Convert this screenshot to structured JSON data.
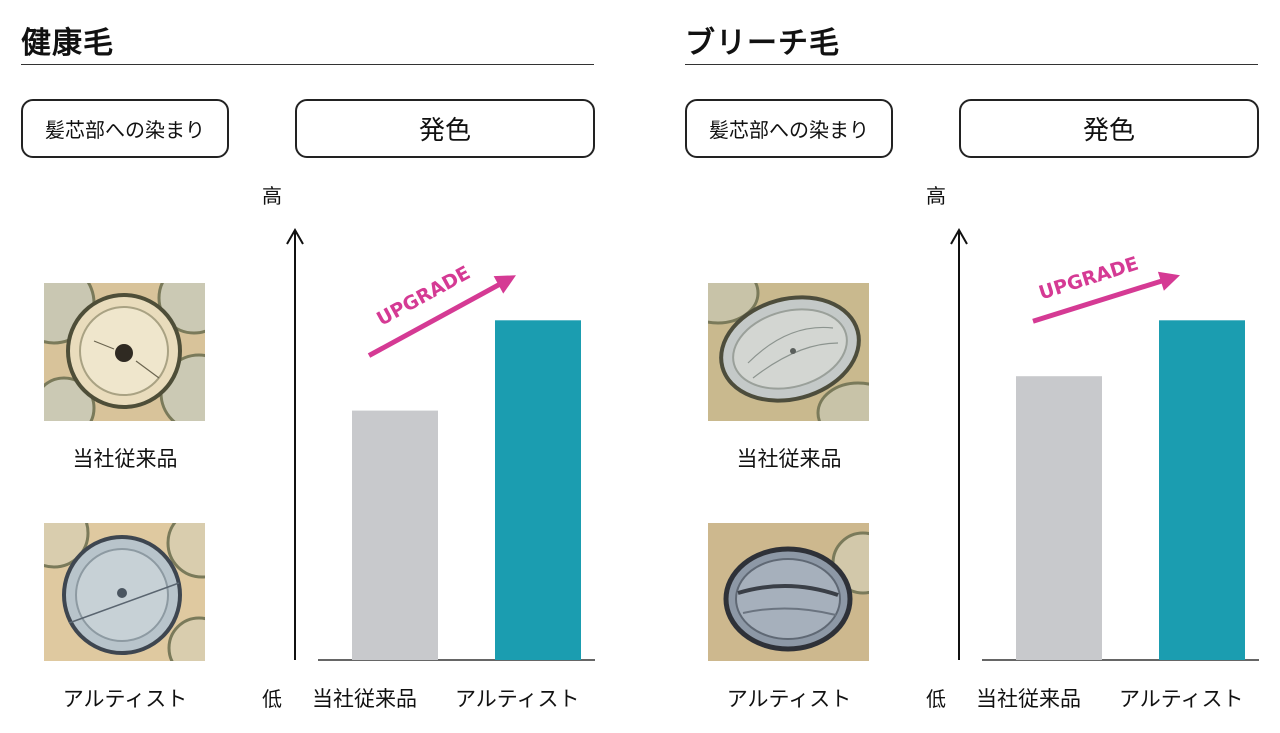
{
  "panels": [
    {
      "title": "健康毛",
      "left_pill": "髪芯部への染まり",
      "right_pill": "発色",
      "sample_captions": [
        "当社従来品",
        "アルティスト"
      ],
      "axis_high": "高",
      "axis_low": "低",
      "annotation": "UPGRADE"
    },
    {
      "title": "ブリーチ毛",
      "left_pill": "髪芯部への染まり",
      "right_pill": "発色",
      "sample_captions": [
        "当社従来品",
        "アルティスト"
      ],
      "axis_high": "高",
      "axis_low": "低",
      "annotation": "UPGRADE"
    }
  ],
  "chart_data": [
    {
      "type": "bar",
      "categories": [
        "当社従来品",
        "アルティスト"
      ],
      "values": [
        58,
        79
      ],
      "ylim": [
        0,
        100
      ],
      "colors": [
        "#c8c9cc",
        "#1b9db0"
      ],
      "annotation_color": "#d53a94"
    },
    {
      "type": "bar",
      "categories": [
        "当社従来品",
        "アルティスト"
      ],
      "values": [
        66,
        79
      ],
      "ylim": [
        0,
        100
      ],
      "colors": [
        "#c8c9cc",
        "#1b9db0"
      ],
      "annotation_color": "#d53a94"
    }
  ]
}
